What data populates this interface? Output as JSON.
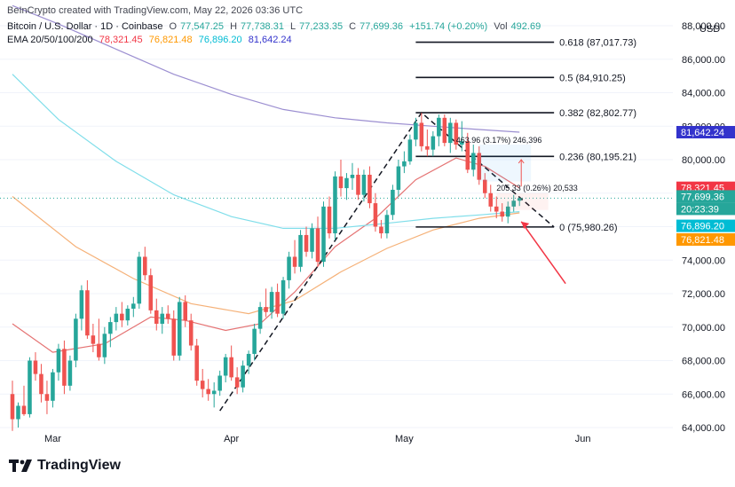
{
  "header": {
    "attribution": "BeInCrypto created with TradingView.com, May 22, 2026 03:36 UTC",
    "symbol": "Bitcoin / U.S. Dollar · 1D · Coinbase",
    "ohlc": {
      "open_label": "O",
      "open": "77,547.25",
      "high_label": "H",
      "high": "77,738.31",
      "low_label": "L",
      "low": "77,233.35",
      "close_label": "C",
      "close": "77,699.36",
      "change": "+151.74 (+0.20%)",
      "vol_label": "Vol",
      "vol": "492.69"
    },
    "ema_label": "EMA 20/50/100/200",
    "ema_values": [
      "78,321.45",
      "76,821.48",
      "76,896.20",
      "81,642.24"
    ]
  },
  "axis": {
    "currency": "USD",
    "y_ticks": [
      "88,000.00",
      "86,000.00",
      "84,000.00",
      "82,000.00",
      "80,000.00",
      "78,000.00",
      "76,000.00",
      "74,000.00",
      "72,000.00",
      "70,000.00",
      "68,000.00",
      "66,000.00",
      "64,000.00"
    ],
    "x_ticks": [
      "Mar",
      "Apr",
      "May",
      "Jun"
    ]
  },
  "price_tags": {
    "ema200": "81,642.24",
    "ema20": "78,321.45",
    "last_price": "77,699.36",
    "countdown": "20:23:39",
    "ema100": "76,896.20",
    "ema50": "76,821.48"
  },
  "fib_labels": [
    "0.618 (87,017.73)",
    "0.5 (84,910.25)",
    "0.382 (82,802.77)",
    "0.236 (80,195.21)",
    "0 (75,980.26)"
  ],
  "measure_labels": {
    "upper": "463.96 (3.17%) 246,396",
    "lower": "205.33 (0.26%) 20,533"
  },
  "colors": {
    "up": "#26a69a",
    "down": "#ef5350",
    "ema20": "#e57373",
    "ema50": "#f5b178",
    "ema100": "#80deea",
    "ema200": "#9c8fd1",
    "ema200_tag": "#3333cc",
    "ema20_tag": "#f23645",
    "last_tag": "#26a69a",
    "ema100_tag": "#00bcd4",
    "ema50_tag": "#ff9800"
  },
  "branding": {
    "logo_text": "TradingView"
  },
  "chart_data": {
    "type": "candlestick",
    "x_range": [
      "2026-02-22",
      "2026-06-12"
    ],
    "ylim": [
      63500,
      89500
    ],
    "candles": [
      {
        "date": "2026-02-22",
        "o": 66000,
        "h": 66800,
        "l": 63800,
        "c": 64500
      },
      {
        "date": "2026-02-23",
        "o": 64500,
        "h": 65500,
        "l": 64000,
        "c": 65300
      },
      {
        "date": "2026-02-24",
        "o": 65300,
        "h": 66500,
        "l": 64700,
        "c": 64800
      },
      {
        "date": "2026-02-25",
        "o": 64800,
        "h": 68200,
        "l": 64600,
        "c": 68000
      },
      {
        "date": "2026-02-26",
        "o": 68000,
        "h": 68500,
        "l": 66800,
        "c": 67200
      },
      {
        "date": "2026-02-27",
        "o": 67200,
        "h": 67800,
        "l": 65500,
        "c": 66000
      },
      {
        "date": "2026-02-28",
        "o": 66000,
        "h": 66800,
        "l": 64800,
        "c": 65600
      },
      {
        "date": "2026-03-01",
        "o": 65600,
        "h": 67500,
        "l": 65200,
        "c": 67300
      },
      {
        "date": "2026-03-02",
        "o": 67300,
        "h": 69000,
        "l": 66800,
        "c": 68700
      },
      {
        "date": "2026-03-03",
        "o": 68700,
        "h": 69200,
        "l": 66000,
        "c": 66500
      },
      {
        "date": "2026-03-04",
        "o": 66500,
        "h": 68300,
        "l": 66200,
        "c": 68000
      },
      {
        "date": "2026-03-05",
        "o": 68000,
        "h": 70800,
        "l": 67600,
        "c": 70500
      },
      {
        "date": "2026-03-06",
        "o": 70500,
        "h": 72500,
        "l": 69800,
        "c": 72200
      },
      {
        "date": "2026-03-07",
        "o": 72200,
        "h": 72800,
        "l": 69300,
        "c": 69500
      },
      {
        "date": "2026-03-08",
        "o": 69500,
        "h": 70200,
        "l": 68500,
        "c": 69000
      },
      {
        "date": "2026-03-09",
        "o": 69000,
        "h": 70500,
        "l": 68000,
        "c": 68200
      },
      {
        "date": "2026-03-10",
        "o": 68200,
        "h": 70000,
        "l": 67800,
        "c": 69600
      },
      {
        "date": "2026-03-11",
        "o": 69600,
        "h": 70600,
        "l": 68800,
        "c": 70300
      },
      {
        "date": "2026-03-12",
        "o": 70300,
        "h": 71200,
        "l": 69800,
        "c": 70800
      },
      {
        "date": "2026-03-13",
        "o": 70800,
        "h": 71500,
        "l": 70000,
        "c": 70400
      },
      {
        "date": "2026-03-14",
        "o": 70400,
        "h": 71300,
        "l": 70100,
        "c": 71100
      },
      {
        "date": "2026-03-15",
        "o": 71100,
        "h": 71800,
        "l": 70600,
        "c": 71400
      },
      {
        "date": "2026-03-16",
        "o": 71400,
        "h": 74500,
        "l": 71100,
        "c": 74200
      },
      {
        "date": "2026-03-17",
        "o": 74200,
        "h": 74800,
        "l": 72800,
        "c": 73100
      },
      {
        "date": "2026-03-18",
        "o": 73100,
        "h": 73500,
        "l": 70800,
        "c": 71000
      },
      {
        "date": "2026-03-19",
        "o": 71000,
        "h": 71700,
        "l": 69800,
        "c": 70200
      },
      {
        "date": "2026-03-20",
        "o": 70200,
        "h": 71200,
        "l": 69600,
        "c": 70800
      },
      {
        "date": "2026-03-21",
        "o": 70800,
        "h": 71300,
        "l": 70200,
        "c": 70500
      },
      {
        "date": "2026-03-22",
        "o": 70500,
        "h": 71000,
        "l": 68000,
        "c": 68300
      },
      {
        "date": "2026-03-23",
        "o": 68300,
        "h": 71800,
        "l": 68000,
        "c": 71500
      },
      {
        "date": "2026-03-24",
        "o": 71500,
        "h": 71900,
        "l": 70000,
        "c": 70400
      },
      {
        "date": "2026-03-25",
        "o": 70400,
        "h": 70800,
        "l": 68600,
        "c": 68900
      },
      {
        "date": "2026-03-26",
        "o": 68900,
        "h": 69300,
        "l": 66500,
        "c": 66800
      },
      {
        "date": "2026-03-27",
        "o": 66800,
        "h": 67500,
        "l": 65800,
        "c": 66300
      },
      {
        "date": "2026-03-28",
        "o": 66300,
        "h": 66900,
        "l": 65600,
        "c": 66000
      },
      {
        "date": "2026-03-29",
        "o": 66000,
        "h": 66700,
        "l": 65200,
        "c": 66200
      },
      {
        "date": "2026-03-30",
        "o": 66200,
        "h": 67400,
        "l": 65900,
        "c": 67100
      },
      {
        "date": "2026-03-31",
        "o": 67100,
        "h": 68400,
        "l": 66700,
        "c": 68200
      },
      {
        "date": "2026-04-01",
        "o": 68200,
        "h": 68900,
        "l": 66800,
        "c": 67000
      },
      {
        "date": "2026-04-02",
        "o": 67000,
        "h": 67600,
        "l": 66000,
        "c": 66400
      },
      {
        "date": "2026-04-03",
        "o": 66400,
        "h": 68000,
        "l": 66100,
        "c": 67700
      },
      {
        "date": "2026-04-04",
        "o": 67700,
        "h": 68600,
        "l": 67200,
        "c": 68400
      },
      {
        "date": "2026-04-05",
        "o": 68400,
        "h": 70200,
        "l": 68000,
        "c": 69900
      },
      {
        "date": "2026-04-06",
        "o": 69900,
        "h": 71500,
        "l": 69600,
        "c": 71200
      },
      {
        "date": "2026-04-07",
        "o": 71200,
        "h": 72300,
        "l": 70600,
        "c": 70900
      },
      {
        "date": "2026-04-08",
        "o": 70900,
        "h": 72400,
        "l": 70500,
        "c": 72100
      },
      {
        "date": "2026-04-09",
        "o": 72100,
        "h": 72600,
        "l": 70600,
        "c": 70800
      },
      {
        "date": "2026-04-10",
        "o": 70800,
        "h": 73000,
        "l": 70500,
        "c": 72800
      },
      {
        "date": "2026-04-11",
        "o": 72800,
        "h": 74500,
        "l": 72300,
        "c": 74200
      },
      {
        "date": "2026-04-12",
        "o": 74200,
        "h": 75200,
        "l": 73200,
        "c": 73600
      },
      {
        "date": "2026-04-13",
        "o": 73600,
        "h": 75800,
        "l": 73300,
        "c": 75500
      },
      {
        "date": "2026-04-14",
        "o": 75500,
        "h": 76000,
        "l": 74200,
        "c": 74500
      },
      {
        "date": "2026-04-15",
        "o": 74500,
        "h": 76200,
        "l": 74100,
        "c": 75900
      },
      {
        "date": "2026-04-16",
        "o": 75900,
        "h": 76600,
        "l": 73600,
        "c": 73900
      },
      {
        "date": "2026-04-17",
        "o": 73900,
        "h": 77500,
        "l": 73600,
        "c": 77200
      },
      {
        "date": "2026-04-18",
        "o": 77200,
        "h": 77800,
        "l": 75300,
        "c": 75600
      },
      {
        "date": "2026-04-19",
        "o": 75600,
        "h": 79300,
        "l": 75200,
        "c": 79000
      },
      {
        "date": "2026-04-20",
        "o": 79000,
        "h": 80000,
        "l": 77800,
        "c": 78300
      },
      {
        "date": "2026-04-21",
        "o": 78300,
        "h": 79200,
        "l": 77600,
        "c": 78900
      },
      {
        "date": "2026-04-22",
        "o": 78900,
        "h": 79800,
        "l": 78200,
        "c": 79100
      },
      {
        "date": "2026-04-23",
        "o": 79100,
        "h": 79500,
        "l": 77600,
        "c": 77900
      },
      {
        "date": "2026-04-24",
        "o": 77900,
        "h": 79400,
        "l": 77500,
        "c": 79100
      },
      {
        "date": "2026-04-25",
        "o": 79100,
        "h": 79600,
        "l": 77100,
        "c": 77400
      },
      {
        "date": "2026-04-26",
        "o": 77400,
        "h": 78000,
        "l": 75700,
        "c": 76000
      },
      {
        "date": "2026-04-27",
        "o": 76000,
        "h": 76400,
        "l": 75300,
        "c": 75600
      },
      {
        "date": "2026-04-28",
        "o": 75600,
        "h": 77000,
        "l": 75300,
        "c": 76700
      },
      {
        "date": "2026-04-29",
        "o": 76700,
        "h": 78500,
        "l": 76400,
        "c": 78200
      },
      {
        "date": "2026-04-30",
        "o": 78200,
        "h": 80000,
        "l": 77800,
        "c": 79600
      },
      {
        "date": "2026-05-01",
        "o": 79600,
        "h": 80500,
        "l": 79200,
        "c": 79900
      },
      {
        "date": "2026-05-02",
        "o": 79900,
        "h": 81500,
        "l": 79700,
        "c": 81200
      },
      {
        "date": "2026-05-03",
        "o": 81200,
        "h": 82500,
        "l": 80800,
        "c": 82200
      },
      {
        "date": "2026-05-04",
        "o": 82200,
        "h": 82800,
        "l": 80500,
        "c": 80800
      },
      {
        "date": "2026-05-05",
        "o": 80800,
        "h": 81800,
        "l": 80200,
        "c": 80600
      },
      {
        "date": "2026-05-06",
        "o": 80600,
        "h": 81700,
        "l": 80200,
        "c": 81400
      },
      {
        "date": "2026-05-07",
        "o": 81400,
        "h": 82700,
        "l": 80800,
        "c": 82500
      },
      {
        "date": "2026-05-08",
        "o": 82500,
        "h": 82700,
        "l": 80800,
        "c": 81000
      },
      {
        "date": "2026-05-09",
        "o": 81000,
        "h": 82500,
        "l": 80400,
        "c": 82200
      },
      {
        "date": "2026-05-10",
        "o": 82200,
        "h": 82400,
        "l": 80600,
        "c": 80900
      },
      {
        "date": "2026-05-11",
        "o": 80900,
        "h": 82300,
        "l": 80500,
        "c": 81100
      },
      {
        "date": "2026-05-12",
        "o": 81100,
        "h": 81600,
        "l": 79200,
        "c": 79400
      },
      {
        "date": "2026-05-13",
        "o": 79400,
        "h": 80900,
        "l": 79000,
        "c": 80400
      },
      {
        "date": "2026-05-14",
        "o": 80400,
        "h": 80800,
        "l": 78500,
        "c": 78800
      },
      {
        "date": "2026-05-15",
        "o": 78800,
        "h": 79200,
        "l": 77700,
        "c": 78000
      },
      {
        "date": "2026-05-16",
        "o": 78000,
        "h": 78500,
        "l": 76900,
        "c": 77200
      },
      {
        "date": "2026-05-17",
        "o": 77200,
        "h": 77800,
        "l": 76500,
        "c": 76900
      },
      {
        "date": "2026-05-18",
        "o": 76900,
        "h": 77400,
        "l": 76300,
        "c": 76600
      },
      {
        "date": "2026-05-19",
        "o": 76600,
        "h": 77500,
        "l": 76200,
        "c": 77200
      },
      {
        "date": "2026-05-20",
        "o": 77200,
        "h": 77900,
        "l": 76900,
        "c": 77550
      },
      {
        "date": "2026-05-21",
        "o": 77547.25,
        "h": 77738.31,
        "l": 77233.35,
        "c": 77699.36
      }
    ],
    "ema_lines": [
      {
        "period": 20,
        "color": "#e57373",
        "points": [
          [
            "2026-02-22",
            70200
          ],
          [
            "2026-03-01",
            68500
          ],
          [
            "2026-03-10",
            69000
          ],
          [
            "2026-03-18",
            70600
          ],
          [
            "2026-03-24",
            70400
          ],
          [
            "2026-03-31",
            69800
          ],
          [
            "2026-04-06",
            70200
          ],
          [
            "2026-04-12",
            72100
          ],
          [
            "2026-04-19",
            74800
          ],
          [
            "2026-04-26",
            76500
          ],
          [
            "2026-05-03",
            78800
          ],
          [
            "2026-05-10",
            80100
          ],
          [
            "2026-05-15",
            79600
          ],
          [
            "2026-05-21",
            78321.45
          ]
        ]
      },
      {
        "period": 50,
        "color": "#f5b178",
        "points": [
          [
            "2026-02-22",
            77800
          ],
          [
            "2026-03-05",
            74800
          ],
          [
            "2026-03-15",
            72900
          ],
          [
            "2026-03-25",
            71400
          ],
          [
            "2026-04-04",
            70800
          ],
          [
            "2026-04-12",
            71600
          ],
          [
            "2026-04-20",
            73300
          ],
          [
            "2026-04-28",
            74700
          ],
          [
            "2026-05-06",
            75800
          ],
          [
            "2026-05-14",
            76500
          ],
          [
            "2026-05-21",
            76821.48
          ]
        ]
      },
      {
        "period": 100,
        "color": "#80deea",
        "points": [
          [
            "2026-02-22",
            85100
          ],
          [
            "2026-03-02",
            82400
          ],
          [
            "2026-03-12",
            79900
          ],
          [
            "2026-03-22",
            77900
          ],
          [
            "2026-04-01",
            76600
          ],
          [
            "2026-04-10",
            75900
          ],
          [
            "2026-04-19",
            75900
          ],
          [
            "2026-04-28",
            76200
          ],
          [
            "2026-05-06",
            76500
          ],
          [
            "2026-05-14",
            76700
          ],
          [
            "2026-05-21",
            76896.2
          ]
        ]
      },
      {
        "period": 200,
        "color": "#9c8fd1",
        "points": [
          [
            "2026-02-22",
            89200
          ],
          [
            "2026-03-02",
            88100
          ],
          [
            "2026-03-12",
            86600
          ],
          [
            "2026-03-22",
            85100
          ],
          [
            "2026-04-01",
            83900
          ],
          [
            "2026-04-10",
            83000
          ],
          [
            "2026-04-19",
            82500
          ],
          [
            "2026-04-28",
            82200
          ],
          [
            "2026-05-06",
            82000
          ],
          [
            "2026-05-14",
            81800
          ],
          [
            "2026-05-21",
            81642.24
          ]
        ]
      }
    ],
    "fibonacci": [
      {
        "level": 0.618,
        "price": 87017.73
      },
      {
        "level": 0.5,
        "price": 84910.25
      },
      {
        "level": 0.382,
        "price": 82802.77
      },
      {
        "level": 0.236,
        "price": 80195.21
      },
      {
        "level": 0,
        "price": 75980.26
      }
    ],
    "trend_path": [
      [
        "2026-03-30",
        65000
      ],
      [
        "2026-05-04",
        82800
      ],
      [
        "2026-05-27",
        75980.26
      ]
    ]
  }
}
